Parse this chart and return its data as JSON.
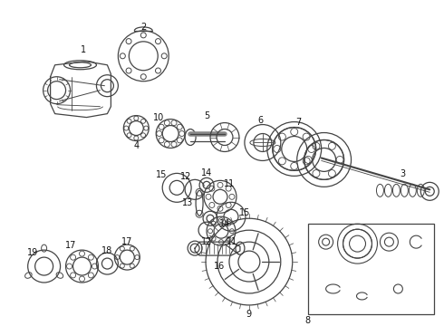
{
  "background_color": "#ffffff",
  "line_color": "#444444",
  "label_color": "#111111",
  "figsize": [
    4.9,
    3.6
  ],
  "dpi": 100
}
